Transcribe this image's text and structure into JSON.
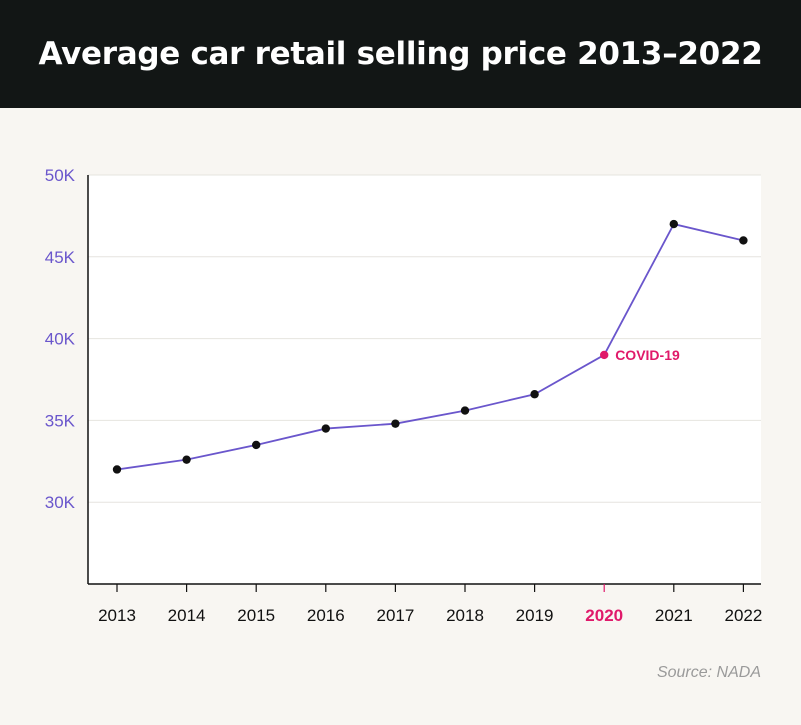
{
  "header": {
    "title": "Average car retail selling price 2013–2022"
  },
  "source": "Source: NADA",
  "colors": {
    "line": "#6a56cc",
    "point": "#111111",
    "highlight": "#e0196a",
    "tick_text": "#6a56cc",
    "grid": "#e6e4df",
    "plot_bg": "#ffffff",
    "axis": "#111111"
  },
  "chart_data": {
    "type": "line",
    "title": "Average car retail selling price 2013–2022",
    "xlabel": "",
    "ylabel": "",
    "x": [
      "2013",
      "2014",
      "2015",
      "2016",
      "2017",
      "2018",
      "2019",
      "2020",
      "2021",
      "2022"
    ],
    "series": [
      {
        "values": [
          32000,
          32600,
          33500,
          34500,
          34800,
          35600,
          36600,
          39000,
          47000,
          46000
        ]
      }
    ],
    "ylim": [
      25000,
      50000
    ],
    "y_ticks": [
      30000,
      35000,
      40000,
      45000,
      50000
    ],
    "y_tick_labels": [
      "30K",
      "35K",
      "40K",
      "45K",
      "50K"
    ],
    "grid": true,
    "legend": "none",
    "highlight": {
      "x": "2020",
      "label": "COVID-19"
    }
  }
}
